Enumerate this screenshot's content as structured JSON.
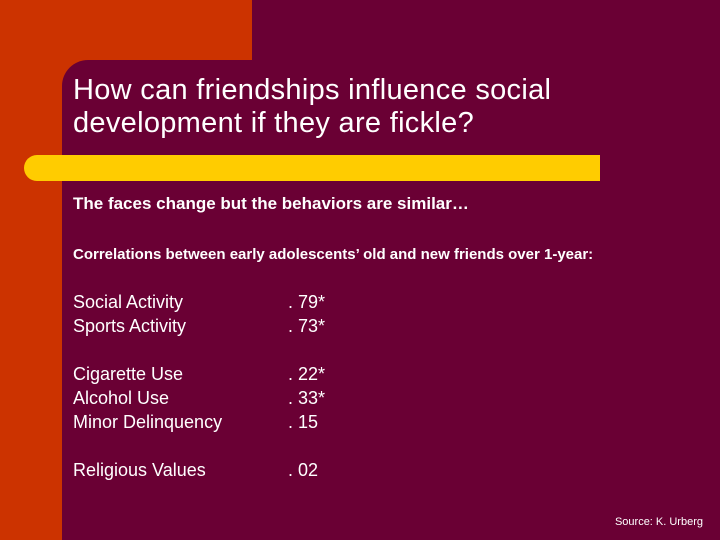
{
  "slide": {
    "title_line1": "How can friendships influence social",
    "title_line2": "development if they are fickle?",
    "subtitle": "The faces change but the behaviors are similar…",
    "intro": "Correlations between early adolescents’ old and new friends over 1-year:",
    "groups": [
      {
        "rows": [
          {
            "label": "Social Activity",
            "value": ". 79*"
          },
          {
            "label": "Sports Activity",
            "value": ". 73*"
          }
        ]
      },
      {
        "rows": [
          {
            "label": "Cigarette Use",
            "value": ". 22*"
          },
          {
            "label": "Alcohol Use",
            "value": ". 33*"
          },
          {
            "label": "Minor Delinquency",
            "value": ". 15"
          }
        ]
      },
      {
        "rows": [
          {
            "label": "Religious Values",
            "value": ". 02"
          }
        ]
      }
    ],
    "source": "Source: K. Urberg"
  },
  "colors": {
    "background": "#6a0034",
    "accent_orange": "#cc3300",
    "accent_yellow": "#ffcc00",
    "text": "#ffffff"
  }
}
